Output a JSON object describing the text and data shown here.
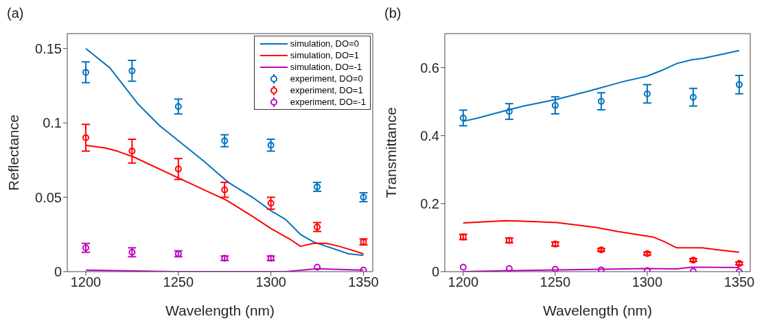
{
  "chart_data": [
    {
      "type": "line",
      "title": "(a)",
      "xlabel": "Wavelength (nm)",
      "ylabel": "Reflectance",
      "xlim": [
        1190,
        1355
      ],
      "xticks": [
        1200,
        1250,
        1300,
        1350
      ],
      "ylim": [
        0,
        0.16
      ],
      "yticks": [
        0,
        0.05,
        0.1,
        0.15
      ],
      "grid": false,
      "legend": "top right",
      "series": [
        {
          "name": "simulation, DO=0",
          "color": "#0072bd",
          "x": [
            1200,
            1213,
            1228,
            1240,
            1251,
            1264,
            1277,
            1290,
            1300,
            1308,
            1316,
            1323,
            1330,
            1342,
            1350
          ],
          "values": [
            0.15,
            0.137,
            0.113,
            0.098,
            0.087,
            0.074,
            0.06,
            0.05,
            0.041,
            0.035,
            0.025,
            0.02,
            0.017,
            0.012,
            0.011
          ]
        },
        {
          "name": "simulation, DO=1",
          "color": "#ff0000",
          "x": [
            1200,
            1211,
            1217,
            1226,
            1250,
            1276,
            1289,
            1300,
            1310,
            1316,
            1323,
            1330,
            1337,
            1350
          ],
          "values": [
            0.085,
            0.083,
            0.081,
            0.077,
            0.063,
            0.048,
            0.038,
            0.029,
            0.022,
            0.017,
            0.019,
            0.019,
            0.017,
            0.012
          ]
        },
        {
          "name": "simulation, DO=-1",
          "color": "#c000c0",
          "x": [
            1200,
            1250,
            1308,
            1325,
            1350
          ],
          "values": [
            0.001,
            0,
            0,
            0.002,
            0.001
          ]
        },
        {
          "name": "experiment, DO=0",
          "type": "scatter",
          "marker": "circle",
          "color": "#0072bd",
          "x": [
            1200,
            1225,
            1250,
            1275,
            1300,
            1325,
            1350
          ],
          "values": [
            0.134,
            0.135,
            0.111,
            0.088,
            0.085,
            0.057,
            0.05
          ],
          "errors": [
            0.007,
            0.007,
            0.005,
            0.004,
            0.004,
            0.003,
            0.003
          ]
        },
        {
          "name": "experiment, DO=1",
          "type": "scatter",
          "marker": "circle",
          "color": "#ff0000",
          "x": [
            1200,
            1225,
            1250,
            1275,
            1300,
            1325,
            1350
          ],
          "values": [
            0.09,
            0.081,
            0.069,
            0.055,
            0.046,
            0.03,
            0.02
          ],
          "errors": [
            0.009,
            0.008,
            0.007,
            0.005,
            0.004,
            0.003,
            0.002
          ]
        },
        {
          "name": "experiment, DO=-1",
          "type": "scatter",
          "marker": "circle",
          "color": "#c000c0",
          "x": [
            1200,
            1225,
            1250,
            1275,
            1300,
            1325,
            1350
          ],
          "values": [
            0.016,
            0.013,
            0.012,
            0.009,
            0.009,
            0.003,
            0.001
          ],
          "errors": [
            0.003,
            0.003,
            0.002,
            0.0015,
            0.0015,
            null,
            null
          ]
        }
      ]
    },
    {
      "type": "line",
      "title": "(b)",
      "xlabel": "Wavelength (nm)",
      "ylabel": "Transmittance",
      "xlim": [
        1190,
        1356
      ],
      "xticks": [
        1200,
        1250,
        1300,
        1350
      ],
      "ylim": [
        0,
        0.7
      ],
      "yticks": [
        0,
        0.2,
        0.4,
        0.6
      ],
      "grid": false,
      "series": [
        {
          "color": "#0072bd",
          "x": [
            1200,
            1208,
            1222,
            1233,
            1251,
            1269,
            1287,
            1300,
            1308,
            1316,
            1324,
            1330,
            1350
          ],
          "values": [
            0.442,
            0.452,
            0.472,
            0.487,
            0.507,
            0.532,
            0.559,
            0.575,
            0.592,
            0.612,
            0.623,
            0.627,
            0.65
          ]
        },
        {
          "color": "#ff0000",
          "x": [
            1200,
            1223,
            1240,
            1251,
            1272,
            1284,
            1303,
            1309,
            1316,
            1330,
            1337,
            1350
          ],
          "values": [
            0.143,
            0.15,
            0.147,
            0.144,
            0.13,
            0.118,
            0.102,
            0.089,
            0.07,
            0.07,
            0.065,
            0.057
          ]
        },
        {
          "color": "#c000c0",
          "x": [
            1200,
            1225,
            1275,
            1300,
            1316,
            1324,
            1350
          ],
          "values": [
            0,
            0.003,
            0.007,
            0.009,
            0.008,
            0.013,
            0.012
          ]
        },
        {
          "type": "scatter",
          "marker": "circle",
          "color": "#0072bd",
          "x": [
            1200,
            1225,
            1250,
            1275,
            1300,
            1325,
            1350
          ],
          "values": [
            0.452,
            0.471,
            0.489,
            0.501,
            0.523,
            0.513,
            0.55
          ],
          "errors": [
            0.023,
            0.023,
            0.025,
            0.025,
            0.027,
            0.026,
            0.027
          ]
        },
        {
          "type": "scatter",
          "marker": "circle",
          "color": "#ff0000",
          "x": [
            1200,
            1225,
            1250,
            1275,
            1300,
            1325,
            1350
          ],
          "values": [
            0.102,
            0.092,
            0.081,
            0.064,
            0.053,
            0.034,
            0.024
          ],
          "errors": [
            0.008,
            0.007,
            0.006,
            0.004,
            0.004,
            0.004,
            0.004
          ]
        },
        {
          "type": "scatter",
          "marker": "circle",
          "color": "#c000c0",
          "x": [
            1200,
            1225,
            1250,
            1275,
            1300,
            1325,
            1350
          ],
          "values": [
            0.013,
            0.009,
            0.007,
            0.005,
            0.003,
            0.001,
            0
          ]
        }
      ]
    }
  ]
}
